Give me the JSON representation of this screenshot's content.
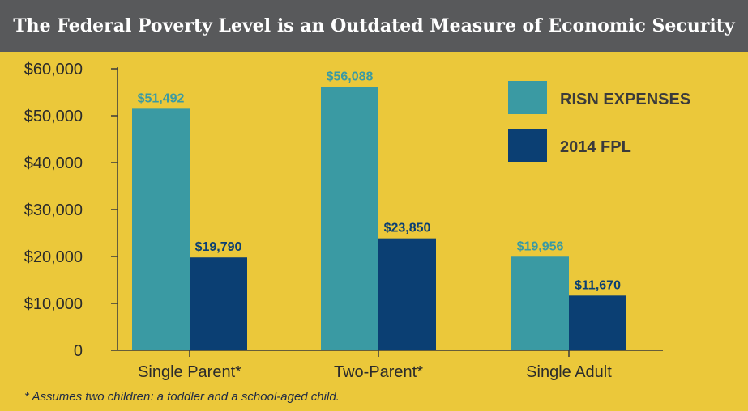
{
  "title": "The Federal Poverty Level is an Outdated Measure of Economic Security",
  "footnote": "* Assumes two children: a toddler and a school-aged child.",
  "colors": {
    "background": "#ebc83a",
    "title_bar": "#58595b",
    "risn": "#3a9aa3",
    "fpl": "#0b3f73",
    "axis": "#3b3b3b",
    "text": "#2b2b2b"
  },
  "chart_data": {
    "type": "bar",
    "title": "The Federal Poverty Level is an Outdated Measure of Economic Security",
    "categories": [
      "Single Parent*",
      "Two-Parent*",
      "Single Adult"
    ],
    "series": [
      {
        "name": "RISN EXPENSES",
        "values": [
          51492,
          56088,
          19956
        ],
        "labels": [
          "$51,492",
          "$56,088",
          "$19,956"
        ],
        "color": "#3a9aa3"
      },
      {
        "name": "2014 FPL",
        "values": [
          19790,
          23850,
          11670
        ],
        "labels": [
          "$19,790",
          "$23,850",
          "$11,670"
        ],
        "color": "#0b3f73"
      }
    ],
    "yticks": [
      0,
      10000,
      20000,
      30000,
      40000,
      50000,
      60000
    ],
    "ytick_labels": [
      "0",
      "$10,000",
      "$20,000",
      "$30,000",
      "$40,000",
      "$50,000",
      "$60,000"
    ],
    "ylim": [
      0,
      60000
    ],
    "xlabel": "",
    "ylabel": "",
    "grid": false,
    "legend_position": "top-right"
  }
}
